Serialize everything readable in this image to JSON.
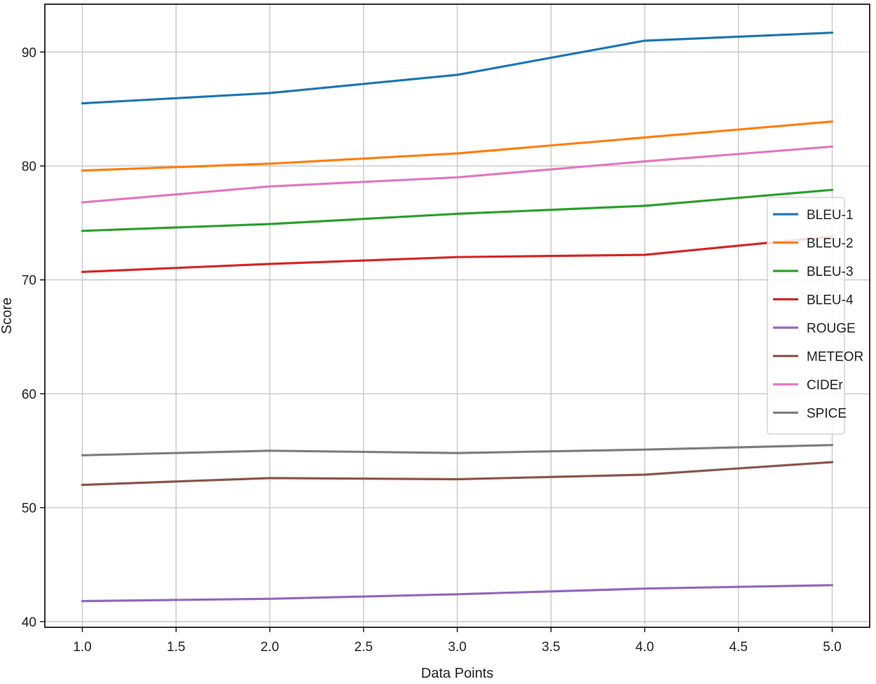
{
  "chart_data": {
    "type": "line",
    "title": "",
    "xlabel": "Data Points",
    "ylabel": "Score",
    "x": [
      1.0,
      2.0,
      3.0,
      4.0,
      5.0
    ],
    "xlim": [
      0.8,
      5.2
    ],
    "ylim": [
      39.5,
      94.2
    ],
    "xticks": [
      1.0,
      1.5,
      2.0,
      2.5,
      3.0,
      3.5,
      4.0,
      4.5,
      5.0
    ],
    "xtick_labels": [
      "1.0",
      "1.5",
      "2.0",
      "2.5",
      "3.0",
      "3.5",
      "4.0",
      "4.5",
      "5.0"
    ],
    "yticks": [
      40,
      50,
      60,
      70,
      80,
      90
    ],
    "ytick_labels": [
      "40",
      "50",
      "60",
      "70",
      "80",
      "90"
    ],
    "grid": true,
    "legend_position": "right",
    "series": [
      {
        "name": "BLEU-1",
        "color": "#1f77b4",
        "values": [
          85.5,
          86.4,
          88.0,
          91.0,
          91.7
        ]
      },
      {
        "name": "BLEU-2",
        "color": "#ff7f0e",
        "values": [
          79.6,
          80.2,
          81.1,
          82.5,
          83.9
        ]
      },
      {
        "name": "BLEU-3",
        "color": "#2ca02c",
        "values": [
          74.3,
          74.9,
          75.8,
          76.5,
          77.9
        ]
      },
      {
        "name": "BLEU-4",
        "color": "#d62728",
        "values": [
          70.7,
          71.4,
          72.0,
          72.2,
          73.8
        ]
      },
      {
        "name": "ROUGE",
        "color": "#9467bd",
        "values": [
          41.8,
          42.0,
          42.4,
          42.9,
          43.2
        ]
      },
      {
        "name": "METEOR",
        "color": "#8c564b",
        "values": [
          52.0,
          52.6,
          52.5,
          52.9,
          54.0
        ]
      },
      {
        "name": "CIDEr",
        "color": "#e377c2",
        "values": [
          76.8,
          78.2,
          79.0,
          80.4,
          81.7
        ]
      },
      {
        "name": "SPICE",
        "color": "#7f7f7f",
        "values": [
          54.6,
          55.0,
          54.8,
          55.1,
          55.5
        ]
      }
    ]
  }
}
